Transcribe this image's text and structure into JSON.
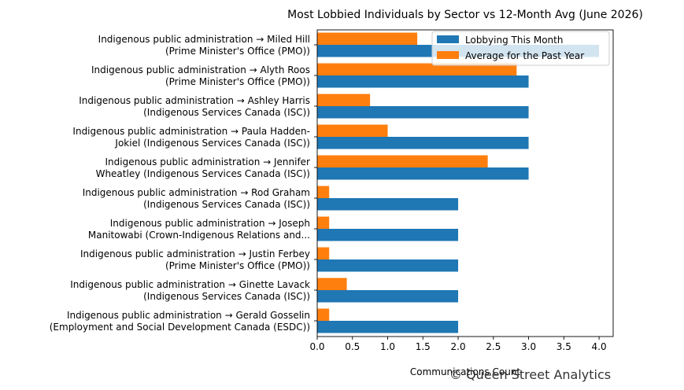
{
  "chart_data": {
    "type": "bar",
    "orientation": "horizontal",
    "title": "Most Lobbied Individuals by Sector vs 12-Month Avg (June 2026)",
    "xlabel": "Communications Count",
    "ylabel": "",
    "xlim": [
      0,
      4.2
    ],
    "xticks": [
      "0.0",
      "0.5",
      "1.0",
      "1.5",
      "2.0",
      "2.5",
      "3.0",
      "3.5",
      "4.0"
    ],
    "legend_position": "top-right",
    "categories": [
      [
        "Indigenous public administration → Miled Hill",
        "(Prime Minister's Office (PMO))"
      ],
      [
        "Indigenous public administration → Alyth Roos",
        "(Prime Minister's Office (PMO))"
      ],
      [
        "Indigenous public administration → Ashley Harris",
        "(Indigenous Services Canada (ISC))"
      ],
      [
        "Indigenous public administration → Paula Hadden-",
        "Jokiel (Indigenous Services Canada (ISC))"
      ],
      [
        "Indigenous public administration → Jennifer",
        "Wheatley (Indigenous Services Canada (ISC))"
      ],
      [
        "Indigenous public administration → Rod Graham",
        "(Indigenous Services Canada (ISC))"
      ],
      [
        "Indigenous public administration → Joseph",
        "Manitowabi (Crown-Indigenous Relations and..."
      ],
      [
        "Indigenous public administration → Justin Ferbey",
        "(Prime Minister's Office (PMO))"
      ],
      [
        "Indigenous public administration → Ginette Lavack",
        "(Indigenous Services Canada (ISC))"
      ],
      [
        "Indigenous public administration → Gerald Gosselin",
        "(Employment and Social Development Canada (ESDC))"
      ]
    ],
    "series": [
      {
        "name": "Lobbying This Month",
        "color": "#1f77b4",
        "values": [
          4,
          3,
          3,
          3,
          3,
          2,
          2,
          2,
          2,
          2
        ]
      },
      {
        "name": "Average for the Past Year",
        "color": "#ff7f0e",
        "values": [
          1.42,
          2.83,
          0.75,
          1.0,
          2.42,
          0.17,
          0.17,
          0.17,
          0.42,
          0.17
        ]
      }
    ]
  },
  "watermark": "© Queen Street Analytics"
}
